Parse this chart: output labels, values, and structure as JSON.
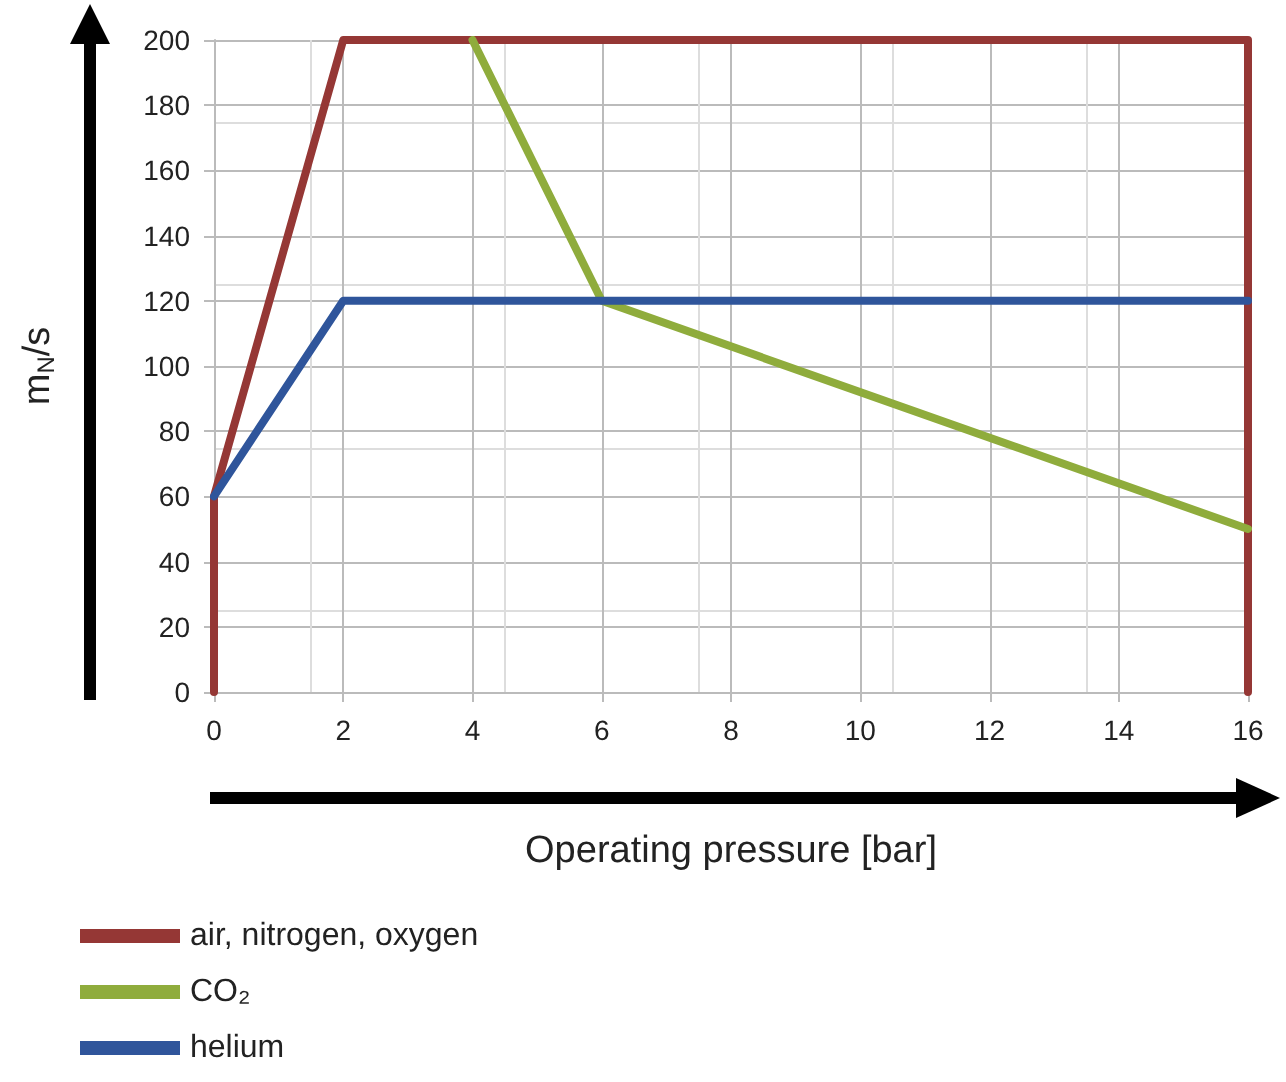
{
  "chart_data": {
    "type": "line",
    "xlabel": "Operating pressure [bar]",
    "ylabel": "m$_{N}$/s",
    "series": [
      {
        "name": "air, nitrogen, oxygen",
        "color": "#953735",
        "x": [
          0,
          0,
          2,
          16,
          16
        ],
        "values": [
          0,
          60,
          200,
          200,
          0
        ]
      },
      {
        "name": "CO₂",
        "color": "#8fac3c",
        "x": [
          4,
          6,
          16
        ],
        "values": [
          200,
          120,
          50
        ]
      },
      {
        "name": "helium",
        "color": "#2f559b",
        "x": [
          0,
          2,
          16
        ],
        "values": [
          60,
          120,
          120
        ]
      }
    ],
    "xlim": [
      0,
      16
    ],
    "xticks": [
      0,
      2,
      4,
      6,
      8,
      10,
      12,
      14,
      16
    ],
    "ylim": [
      0,
      200
    ],
    "yticks": [
      0,
      20,
      40,
      60,
      80,
      100,
      120,
      140,
      160,
      180,
      200
    ],
    "grid": true,
    "legend": "bottom",
    "marker": "none",
    "line_style": "solid"
  }
}
